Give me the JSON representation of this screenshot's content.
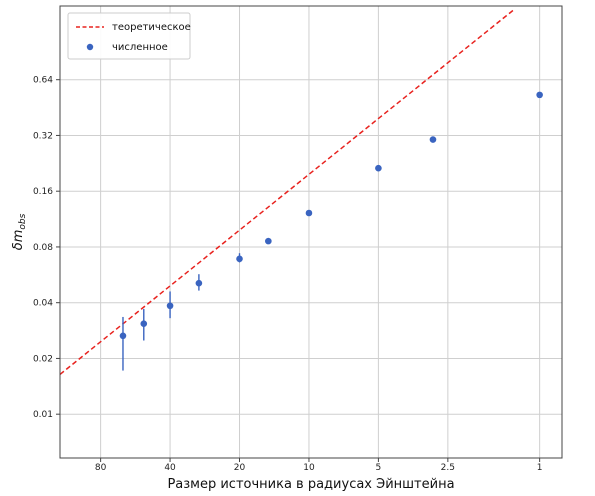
{
  "chart_data": {
    "type": "scatter",
    "xlabel": "Размер источника в радиусах Эйнштейна",
    "ylabel": "δm_obs",
    "ylabel_main": "δm",
    "ylabel_sub": "obs",
    "x_scale": "log",
    "x_inverted": true,
    "y_scale": "log2",
    "xlim": [
      120,
      0.8
    ],
    "ylim": [
      0.0058,
      1.6
    ],
    "grid": true,
    "legend_position": "top-left",
    "x_ticks": [
      {
        "value": 80,
        "label": "80"
      },
      {
        "value": 40,
        "label": "40"
      },
      {
        "value": 20,
        "label": "20"
      },
      {
        "value": 10,
        "label": "10"
      },
      {
        "value": 5,
        "label": "5"
      },
      {
        "value": 2.5,
        "label": "2.5"
      },
      {
        "value": 1,
        "label": "1"
      }
    ],
    "y_ticks": [
      {
        "value": 0.01,
        "label": "0.01"
      },
      {
        "value": 0.02,
        "label": "0.02"
      },
      {
        "value": 0.04,
        "label": "0.04"
      },
      {
        "value": 0.08,
        "label": "0.08"
      },
      {
        "value": 0.16,
        "label": "0.16"
      },
      {
        "value": 0.32,
        "label": "0.32"
      },
      {
        "value": 0.64,
        "label": "0.64"
      }
    ],
    "series": [
      {
        "name": "теоретическое",
        "kind": "line",
        "style": "dashed",
        "color": "#e8231f",
        "x": [
          120,
          1.3
        ],
        "y": [
          0.0164,
          1.52
        ]
      },
      {
        "name": "численное",
        "kind": "scatter",
        "color": "#3a64c0",
        "points": [
          {
            "x": 64,
            "y": 0.0265,
            "err_low": 0.0172,
            "err_high": 0.0335
          },
          {
            "x": 52,
            "y": 0.0308,
            "err_low": 0.025,
            "err_high": 0.037
          },
          {
            "x": 40,
            "y": 0.0385,
            "err_low": 0.033,
            "err_high": 0.046
          },
          {
            "x": 30,
            "y": 0.051,
            "err_low": 0.0465,
            "err_high": 0.057
          },
          {
            "x": 20,
            "y": 0.069,
            "err_low": 0.066,
            "err_high": 0.074
          },
          {
            "x": 15,
            "y": 0.086,
            "err_low": 0.083,
            "err_high": 0.0895
          },
          {
            "x": 10,
            "y": 0.122,
            "err_low": 0.12,
            "err_high": 0.124
          },
          {
            "x": 5,
            "y": 0.213,
            "err_low": 0.211,
            "err_high": 0.215
          },
          {
            "x": 2.9,
            "y": 0.304,
            "err_low": 0.302,
            "err_high": 0.306
          },
          {
            "x": 1,
            "y": 0.53,
            "err_low": 0.528,
            "err_high": 0.532
          }
        ]
      }
    ]
  }
}
